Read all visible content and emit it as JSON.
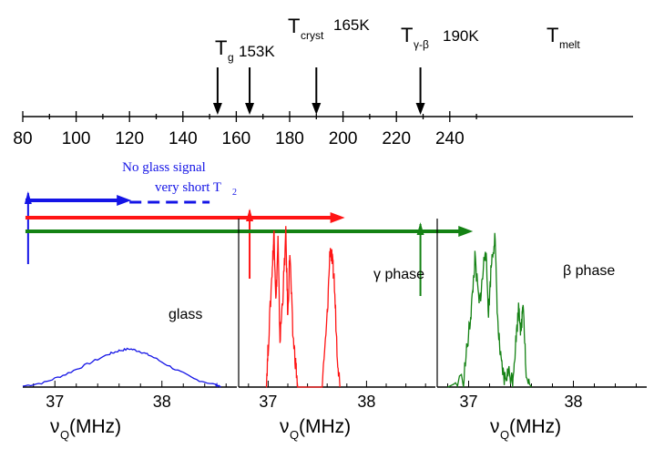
{
  "colors": {
    "blue": "#1414e6",
    "red": "#ff1414",
    "green": "#148214",
    "black": "#000000"
  },
  "chart_data": [
    {
      "type": "line",
      "kind": "temperature-axis",
      "x_ticks": [
        80,
        100,
        120,
        140,
        160,
        180,
        200,
        220,
        240
      ],
      "xlim": [
        80,
        250
      ],
      "transitions": [
        {
          "main": "T",
          "sub": "g",
          "value_text": "153K",
          "x": 153
        },
        {
          "main": "T",
          "sub": "cryst",
          "value_text": "165K",
          "x": 165
        },
        {
          "main": "T",
          "sub": "γ-β",
          "value_text": "190K",
          "x": 190
        },
        {
          "main": "T",
          "sub": "melt",
          "value_text": "",
          "x": 229
        }
      ],
      "annotations": {
        "no_glass_line1": "No  glass signal",
        "no_glass_line2_main": "very short T",
        "no_glass_line2_sub": "2"
      },
      "ranges": [
        {
          "color": "blue",
          "x_start": 81,
          "x_end": 120,
          "dashed_from": 120,
          "dashed_to": 150,
          "marker_x": 82
        },
        {
          "color": "red",
          "x_start": 81,
          "x_end": 200,
          "marker_x": 165
        },
        {
          "color": "green",
          "x_start": 81,
          "x_end": 248,
          "marker_x": 229
        }
      ]
    },
    {
      "type": "line",
      "panel_label": "glass",
      "color": "blue",
      "xlabel_main": "ν",
      "xlabel_sub": "Q",
      "xlabel_unit": "(MHz)",
      "x_ticks": [
        37,
        38
      ],
      "xlim": [
        36.7,
        38.7
      ],
      "x": [
        36.7,
        36.9,
        37.1,
        37.3,
        37.5,
        37.6,
        37.7,
        37.8,
        37.9,
        38.1,
        38.3,
        38.5,
        38.55
      ],
      "y": [
        0.02,
        0.1,
        0.28,
        0.5,
        0.72,
        0.8,
        0.84,
        0.78,
        0.68,
        0.42,
        0.18,
        0.05,
        0.02
      ]
    },
    {
      "type": "line",
      "panel_label": "γ phase",
      "color": "red",
      "xlabel_main": "ν",
      "xlabel_sub": "Q",
      "xlabel_unit": "(MHz)",
      "x_ticks": [
        37,
        38
      ],
      "xlim": [
        36.7,
        38.7
      ],
      "x": [
        36.98,
        37.0,
        37.04,
        37.06,
        37.08,
        37.1,
        37.12,
        37.15,
        37.18,
        37.2,
        37.22,
        37.25,
        37.28,
        37.3,
        37.32,
        37.55,
        37.6,
        37.63,
        37.65,
        37.67,
        37.7,
        37.73
      ],
      "y": [
        0.0,
        0.25,
        0.75,
        1.0,
        0.55,
        0.95,
        0.3,
        0.6,
        0.98,
        0.45,
        0.88,
        0.35,
        0.15,
        0.0,
        0.0,
        0.0,
        0.45,
        0.9,
        0.82,
        0.7,
        0.25,
        0.0
      ]
    },
    {
      "type": "line",
      "panel_label": "β phase",
      "color": "green",
      "xlabel_main": "ν",
      "xlabel_sub": "Q",
      "xlabel_unit": "(MHz)",
      "x_ticks": [
        37,
        38
      ],
      "xlim": [
        36.7,
        38.7
      ],
      "x": [
        36.8,
        36.95,
        37.0,
        37.03,
        37.06,
        37.1,
        37.13,
        37.16,
        37.19,
        37.22,
        37.25,
        37.28,
        37.31,
        37.34,
        37.38,
        37.42,
        37.45,
        37.48,
        37.5,
        37.52,
        37.55,
        37.6
      ],
      "y": [
        0.0,
        0.05,
        0.35,
        0.55,
        0.85,
        0.55,
        0.7,
        0.95,
        0.5,
        0.85,
        1.0,
        0.4,
        0.15,
        0.05,
        0.1,
        0.05,
        0.3,
        0.55,
        0.35,
        0.6,
        0.05,
        0.0
      ]
    }
  ]
}
